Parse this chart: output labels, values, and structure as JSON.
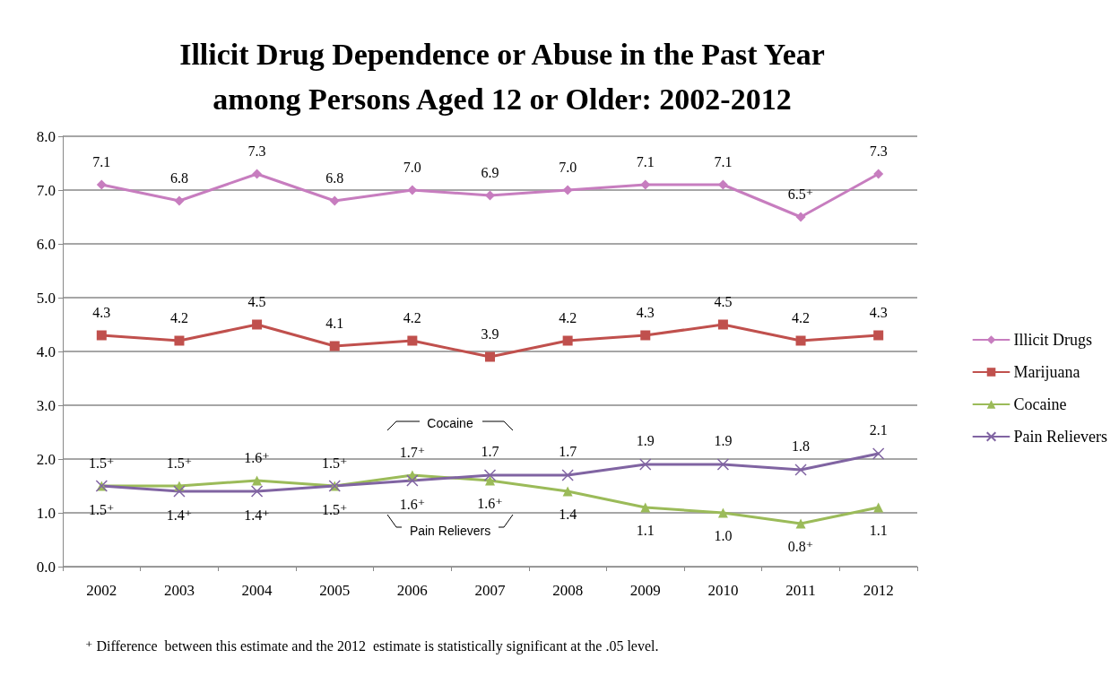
{
  "chart_data": {
    "type": "line",
    "title": "Illicit Drug Dependence or Abuse in the Past Year\namong Persons Aged 12 or Older: 2002-2012",
    "categories": [
      "2002",
      "2003",
      "2004",
      "2005",
      "2006",
      "2007",
      "2008",
      "2009",
      "2010",
      "2011",
      "2012"
    ],
    "series": [
      {
        "name": "Illicit Drugs",
        "color": "#c77dbf",
        "marker": "diamond",
        "values": [
          7.1,
          6.8,
          7.3,
          6.8,
          7.0,
          6.9,
          7.0,
          7.1,
          7.1,
          6.5,
          7.3
        ],
        "value_labels": [
          "7.1",
          "6.8",
          "7.3",
          "6.8",
          "7.0",
          "6.9",
          "7.0",
          "7.1",
          "7.1",
          "6.5⁺",
          "7.3"
        ]
      },
      {
        "name": "Marijuana",
        "color": "#c0504d",
        "marker": "square",
        "values": [
          4.3,
          4.2,
          4.5,
          4.1,
          4.2,
          3.9,
          4.2,
          4.3,
          4.5,
          4.2,
          4.3
        ],
        "value_labels": [
          "4.3",
          "4.2",
          "4.5",
          "4.1",
          "4.2",
          "3.9",
          "4.2",
          "4.3",
          "4.5",
          "4.2",
          "4.3"
        ]
      },
      {
        "name": "Cocaine",
        "color": "#9bbb59",
        "marker": "triangle",
        "values": [
          1.5,
          1.5,
          1.6,
          1.5,
          1.7,
          1.6,
          1.4,
          1.1,
          1.0,
          0.8,
          1.1
        ],
        "value_labels": [
          "1.5⁺",
          "1.5⁺",
          "1.6⁺",
          "1.5⁺",
          "1.7⁺",
          "1.6⁺",
          "1.4",
          "1.1",
          "1.0",
          "0.8⁺",
          "1.1"
        ]
      },
      {
        "name": "Pain Relievers",
        "color": "#8064a2",
        "marker": "cross",
        "values": [
          1.5,
          1.4,
          1.4,
          1.5,
          1.6,
          1.7,
          1.7,
          1.9,
          1.9,
          1.8,
          2.1
        ],
        "value_labels": [
          "1.5⁺",
          "1.4⁺",
          "1.4⁺",
          "1.5⁺",
          "1.6⁺",
          "1.7",
          "1.7",
          "1.9",
          "1.9",
          "1.8",
          "2.1"
        ]
      }
    ],
    "ylim": [
      0,
      8
    ],
    "yticks": [
      {
        "value": 0,
        "label": "0.0"
      },
      {
        "value": 1,
        "label": "1.0"
      },
      {
        "value": 2,
        "label": "2.0"
      },
      {
        "value": 3,
        "label": "3.0"
      },
      {
        "value": 4,
        "label": "4.0"
      },
      {
        "value": 5,
        "label": "5.0"
      },
      {
        "value": 6,
        "label": "6.0"
      },
      {
        "value": 7,
        "label": "7.0"
      },
      {
        "value": 8,
        "label": "8.0"
      }
    ],
    "grid": "y",
    "legend": "right",
    "annotations": [
      "Cocaine",
      "Pain Relievers",
      "⁺ Difference  between this estimate and the 2012  estimate is statistically significant at the .05 level."
    ]
  }
}
